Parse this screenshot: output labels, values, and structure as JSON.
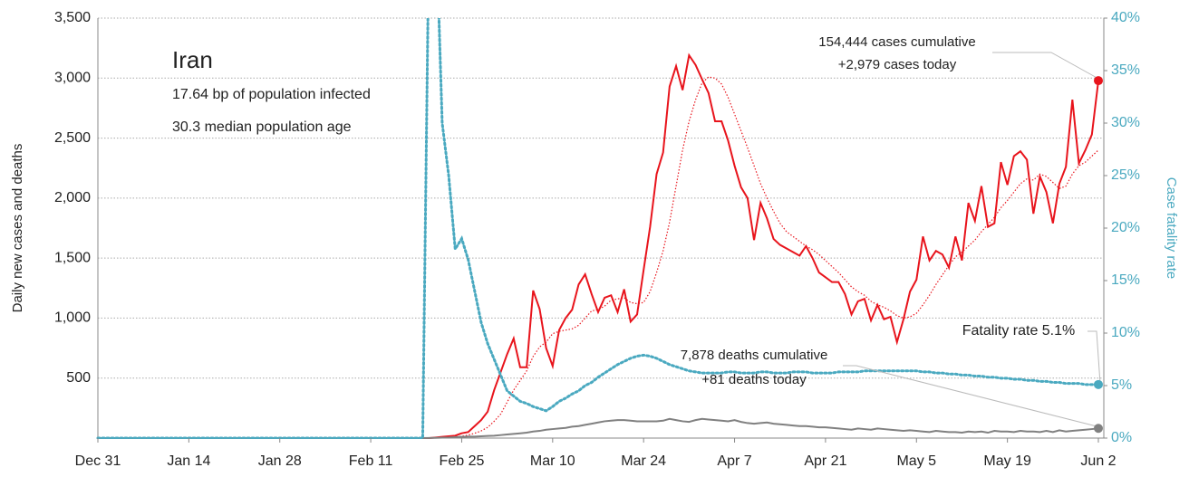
{
  "chart_data": {
    "type": "line",
    "title": "Iran",
    "subtitle": [
      "17.64 bp of population infected",
      "30.3 median population age"
    ],
    "y_label": "Daily new cases and deaths",
    "y2_label": "Case fatality rate",
    "annotations": {
      "cases": [
        "154,444 cases cumulative",
        "+2,979 cases today"
      ],
      "deaths": [
        "7,878 deaths cumulative",
        "+81 deaths today"
      ],
      "fatality": "Fatality rate 5.1%"
    },
    "xlim": [
      0,
      154
    ],
    "xticks": [
      {
        "value": 0,
        "label": "Dec 31"
      },
      {
        "value": 14,
        "label": "Jan 14"
      },
      {
        "value": 28,
        "label": "Jan 28"
      },
      {
        "value": 42,
        "label": "Feb 11"
      },
      {
        "value": 56,
        "label": "Feb 25"
      },
      {
        "value": 70,
        "label": "Mar 10"
      },
      {
        "value": 84,
        "label": "Mar 24"
      },
      {
        "value": 98,
        "label": "Apr 7"
      },
      {
        "value": 112,
        "label": "Apr 21"
      },
      {
        "value": 126,
        "label": "May 5"
      },
      {
        "value": 140,
        "label": "May 19"
      },
      {
        "value": 154,
        "label": "Jun 2"
      }
    ],
    "ylim": [
      0,
      3500
    ],
    "yticks": [
      500,
      {
        "value": 1000,
        "label": "1,000"
      },
      {
        "value": 1500,
        "label": "1,500"
      },
      {
        "value": 2000,
        "label": "2,000"
      },
      {
        "value": 2500,
        "label": "2,500"
      },
      {
        "value": 3000,
        "label": "3,000"
      },
      {
        "value": 3500,
        "label": "3,500"
      }
    ],
    "y2lim": [
      0,
      40
    ],
    "y2ticks": [
      {
        "value": 0,
        "label": "0%"
      },
      {
        "value": 5,
        "label": "5%"
      },
      {
        "value": 10,
        "label": "10%"
      },
      {
        "value": 15,
        "label": "15%"
      },
      {
        "value": 20,
        "label": "20%"
      },
      {
        "value": 25,
        "label": "25%"
      },
      {
        "value": 30,
        "label": "30%"
      },
      {
        "value": 35,
        "label": "35%"
      },
      {
        "value": 40,
        "label": "40%"
      }
    ],
    "grid": true,
    "x": [
      0,
      50,
      51,
      52,
      53,
      54,
      55,
      56,
      57,
      58,
      59,
      60,
      61,
      62,
      63,
      64,
      65,
      66,
      67,
      68,
      69,
      70,
      71,
      72,
      73,
      74,
      75,
      76,
      77,
      78,
      79,
      80,
      81,
      82,
      83,
      84,
      85,
      86,
      87,
      88,
      89,
      90,
      91,
      92,
      93,
      94,
      95,
      96,
      97,
      98,
      99,
      100,
      101,
      102,
      103,
      104,
      105,
      106,
      107,
      108,
      109,
      110,
      111,
      112,
      113,
      114,
      115,
      116,
      117,
      118,
      119,
      120,
      121,
      122,
      123,
      124,
      125,
      126,
      127,
      128,
      129,
      130,
      131,
      132,
      133,
      134,
      135,
      136,
      137,
      138,
      139,
      140,
      141,
      142,
      143,
      144,
      145,
      146,
      147,
      148,
      149,
      150,
      151,
      152,
      153,
      154
    ],
    "series": [
      {
        "color": "#e8141c",
        "style": "solid",
        "end_marker": true,
        "values": [
          0,
          0,
          0,
          5,
          10,
          15,
          20,
          40,
          50,
          100,
          150,
          220,
          400,
          550,
          700,
          830,
          590,
          590,
          1230,
          1075,
          750,
          600,
          900,
          1000,
          1070,
          1280,
          1365,
          1200,
          1050,
          1170,
          1190,
          1050,
          1240,
          970,
          1030,
          1400,
          1760,
          2200,
          2380,
          2930,
          3100,
          2900,
          3190,
          3110,
          2990,
          2875,
          2640,
          2640,
          2480,
          2270,
          2090,
          2000,
          1650,
          1960,
          1830,
          1660,
          1610,
          1580,
          1550,
          1520,
          1600,
          1500,
          1380,
          1340,
          1300,
          1300,
          1200,
          1030,
          1140,
          1160,
          980,
          1110,
          990,
          1010,
          800,
          990,
          1220,
          1320,
          1680,
          1480,
          1560,
          1530,
          1420,
          1680,
          1480,
          1960,
          1810,
          2100,
          1760,
          1790,
          2300,
          2110,
          2350,
          2390,
          2320,
          1870,
          2180,
          2050,
          1790,
          2120,
          2260,
          2820,
          2290,
          2400,
          2530,
          2979
        ]
      },
      {
        "color": "#e8141c",
        "style": "dotted",
        "values": [
          0,
          0,
          0,
          2,
          4,
          7,
          10,
          15,
          25,
          40,
          60,
          90,
          140,
          200,
          300,
          400,
          480,
          560,
          680,
          760,
          800,
          870,
          890,
          900,
          910,
          940,
          1000,
          1060,
          1070,
          1100,
          1150,
          1160,
          1170,
          1130,
          1120,
          1130,
          1220,
          1380,
          1560,
          1800,
          2100,
          2400,
          2640,
          2820,
          2960,
          3010,
          3000,
          2950,
          2840,
          2700,
          2560,
          2420,
          2270,
          2120,
          2000,
          1890,
          1790,
          1720,
          1680,
          1640,
          1600,
          1570,
          1530,
          1480,
          1430,
          1380,
          1320,
          1260,
          1220,
          1190,
          1140,
          1110,
          1090,
          1060,
          1020,
          1000,
          1010,
          1040,
          1110,
          1190,
          1280,
          1360,
          1440,
          1510,
          1550,
          1600,
          1650,
          1720,
          1780,
          1840,
          1920,
          1980,
          2050,
          2120,
          2160,
          2150,
          2200,
          2180,
          2130,
          2080,
          2100,
          2200,
          2270,
          2300,
          2350,
          2400
        ]
      },
      {
        "color": "#808080",
        "style": "solid",
        "end_marker": true,
        "values": [
          0,
          0,
          1,
          2,
          4,
          5,
          8,
          10,
          12,
          12,
          15,
          18,
          20,
          25,
          30,
          35,
          40,
          45,
          55,
          60,
          70,
          75,
          80,
          85,
          95,
          100,
          110,
          120,
          130,
          140,
          145,
          150,
          150,
          145,
          140,
          140,
          140,
          140,
          145,
          160,
          150,
          140,
          135,
          150,
          160,
          155,
          150,
          145,
          140,
          150,
          135,
          125,
          120,
          125,
          130,
          120,
          115,
          110,
          105,
          100,
          100,
          95,
          90,
          90,
          85,
          80,
          75,
          70,
          80,
          75,
          70,
          80,
          75,
          70,
          65,
          60,
          65,
          60,
          55,
          50,
          60,
          55,
          50,
          50,
          45,
          55,
          50,
          55,
          45,
          60,
          55,
          55,
          50,
          60,
          55,
          55,
          50,
          60,
          50,
          65,
          55,
          60,
          65,
          70,
          75,
          81
        ]
      },
      {
        "color": "#4aa9c0",
        "style": "dotted",
        "axis": "y2",
        "end_marker": true,
        "values": [
          0,
          0,
          50,
          50,
          30,
          25,
          18,
          19,
          17,
          14,
          11,
          9,
          7.5,
          6,
          4.5,
          4,
          3.5,
          3.3,
          3,
          2.8,
          2.6,
          3,
          3.5,
          3.8,
          4.2,
          4.5,
          5,
          5.3,
          5.8,
          6.2,
          6.6,
          7,
          7.3,
          7.6,
          7.8,
          7.9,
          7.8,
          7.6,
          7.3,
          7,
          6.8,
          6.6,
          6.4,
          6.3,
          6.2,
          6.2,
          6.2,
          6.2,
          6.3,
          6.3,
          6.2,
          6.2,
          6.2,
          6.3,
          6.3,
          6.2,
          6.2,
          6.2,
          6.3,
          6.3,
          6.3,
          6.2,
          6.2,
          6.2,
          6.2,
          6.3,
          6.3,
          6.3,
          6.3,
          6.4,
          6.4,
          6.4,
          6.4,
          6.4,
          6.4,
          6.4,
          6.4,
          6.4,
          6.3,
          6.3,
          6.2,
          6.2,
          6.1,
          6.1,
          6,
          6,
          5.9,
          5.9,
          5.8,
          5.8,
          5.7,
          5.7,
          5.6,
          5.6,
          5.5,
          5.5,
          5.4,
          5.4,
          5.3,
          5.3,
          5.2,
          5.2,
          5.2,
          5.1,
          5.1,
          5.1
        ]
      }
    ]
  }
}
